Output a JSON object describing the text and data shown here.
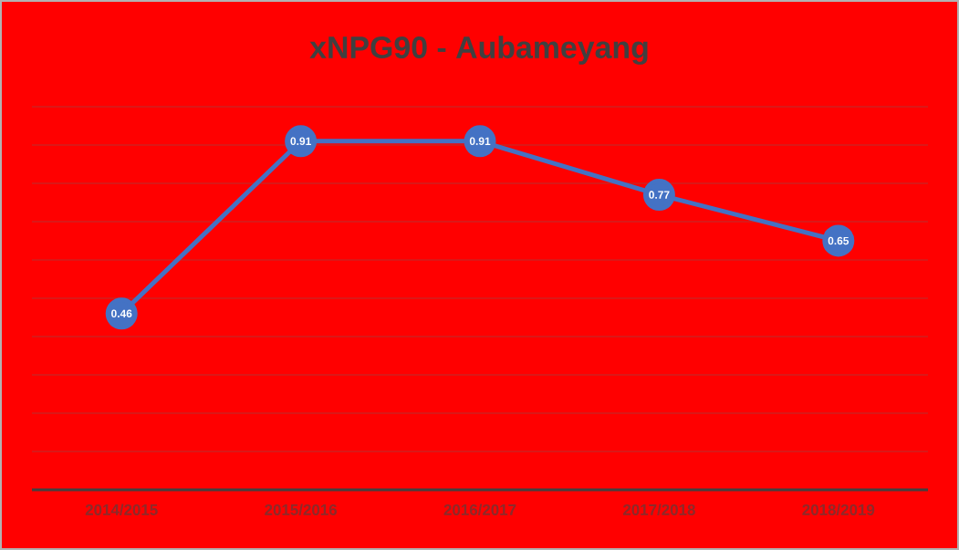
{
  "chart_data": {
    "type": "line",
    "title": "xNPG90 - Aubameyang",
    "categories": [
      "2014/2015",
      "2015/2016",
      "2016/2017",
      "2017/2018",
      "2018/2019"
    ],
    "series": [
      {
        "color": "#4472c4",
        "values": [
          0.46,
          0.91,
          0.91,
          0.77,
          0.65
        ]
      }
    ],
    "ylim": [
      0,
      1
    ],
    "yticks": [
      {
        "value": 0,
        "label": null
      },
      {
        "value": 0.1,
        "label": null
      },
      {
        "value": 0.2,
        "label": null
      },
      {
        "value": 0.3,
        "label": null
      },
      {
        "value": 0.4,
        "label": null
      },
      {
        "value": 0.5,
        "label": null
      },
      {
        "value": 0.6,
        "label": null
      },
      {
        "value": 0.7,
        "label": null
      },
      {
        "value": 0.8,
        "label": null
      },
      {
        "value": 0.9,
        "label": null
      },
      {
        "value": 1,
        "label": null
      }
    ],
    "tick_labels": "x",
    "grid": "y",
    "marker": "circle",
    "line_style": "solid",
    "data_labels": true
  }
}
